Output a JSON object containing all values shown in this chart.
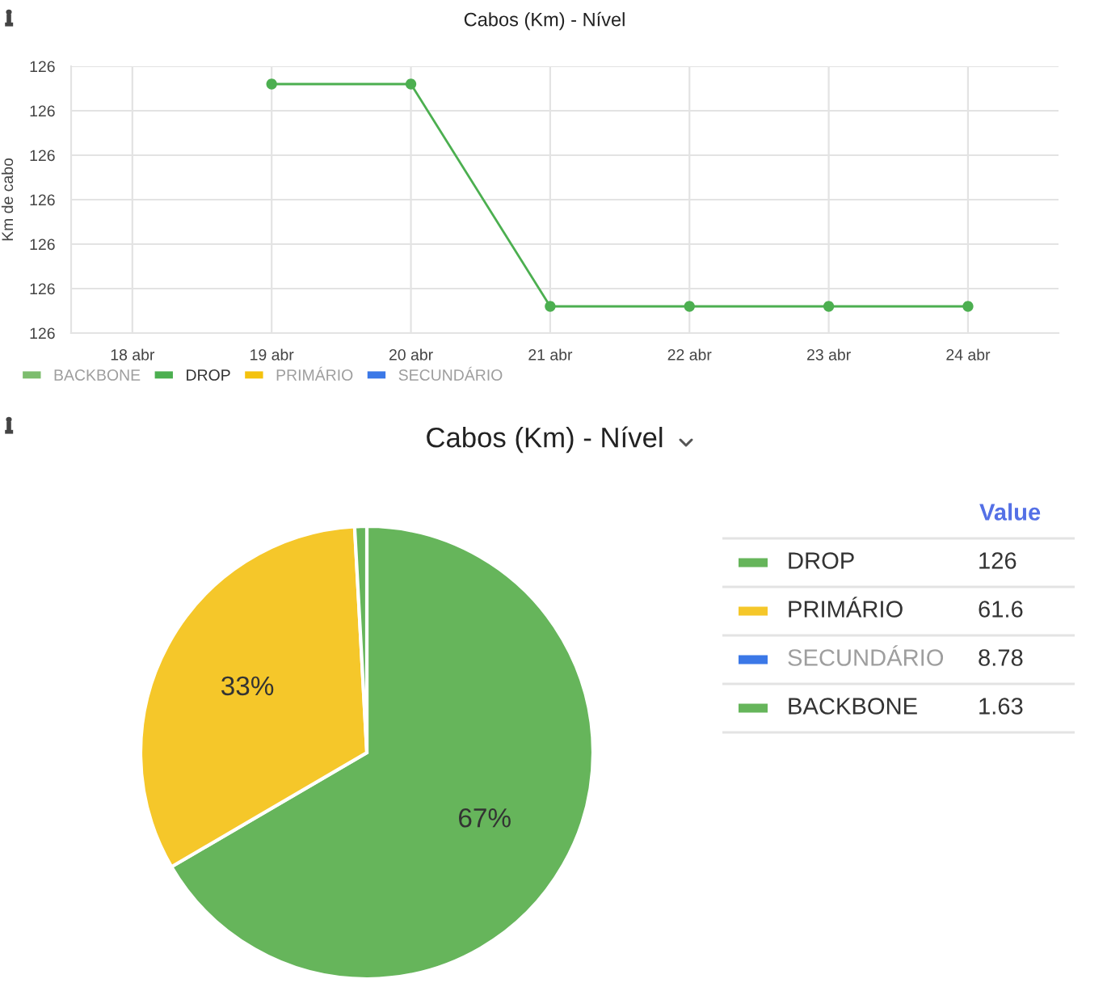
{
  "chart_data": [
    {
      "type": "line",
      "title": "Cabos (Km) - Nível",
      "ylabel": "Km de cabo",
      "categories": [
        "18 abr",
        "19 abr",
        "20 abr",
        "21 abr",
        "22 abr",
        "23 abr",
        "24 abr"
      ],
      "series": [
        {
          "name": "BACKBONE",
          "color": "#7dbd6e",
          "values": [
            null,
            null,
            null,
            null,
            null,
            null,
            null
          ]
        },
        {
          "name": "DROP",
          "color": "#4caf50",
          "values": [
            null,
            126.16,
            126.16,
            125.66,
            125.66,
            125.66,
            125.66
          ]
        },
        {
          "name": "PRIMÁRIO",
          "color": "#f4c20d",
          "values": [
            null,
            null,
            null,
            null,
            null,
            null,
            null
          ]
        },
        {
          "name": "SECUNDÁRIO",
          "color": "#3b78e7",
          "values": [
            null,
            null,
            null,
            null,
            null,
            null,
            null
          ]
        }
      ],
      "ylim": [
        125.6,
        126.2
      ],
      "yticks": [
        {
          "value": 125.6,
          "label": "126"
        },
        {
          "value": 125.7,
          "label": "126"
        },
        {
          "value": 125.8,
          "label": "126"
        },
        {
          "value": 125.9,
          "label": "126"
        },
        {
          "value": 126.0,
          "label": "126"
        },
        {
          "value": 126.1,
          "label": "126"
        },
        {
          "value": 126.2,
          "label": "126"
        }
      ],
      "grid": true,
      "legend": "bottom",
      "marker": "circle",
      "line_style": "solid"
    },
    {
      "type": "pie",
      "title": "Cabos (Km) - Nível",
      "legend_title": "Value",
      "categories": [
        "DROP",
        "PRIMÁRIO",
        "SECUNDÁRIO",
        "BACKBONE"
      ],
      "values": [
        126,
        61.6,
        null,
        1.63
      ],
      "colors": [
        "#66b55b",
        "#f5c72a",
        "#3b78e7",
        "#66b55b"
      ],
      "value_labels": [
        "126",
        "61.6",
        "8.78",
        "1.63"
      ],
      "legend": "right",
      "annotations": [
        {
          "text": "67%",
          "x": "DROP"
        },
        {
          "text": "33%",
          "x": "PRIMÁRIO"
        }
      ]
    }
  ]
}
